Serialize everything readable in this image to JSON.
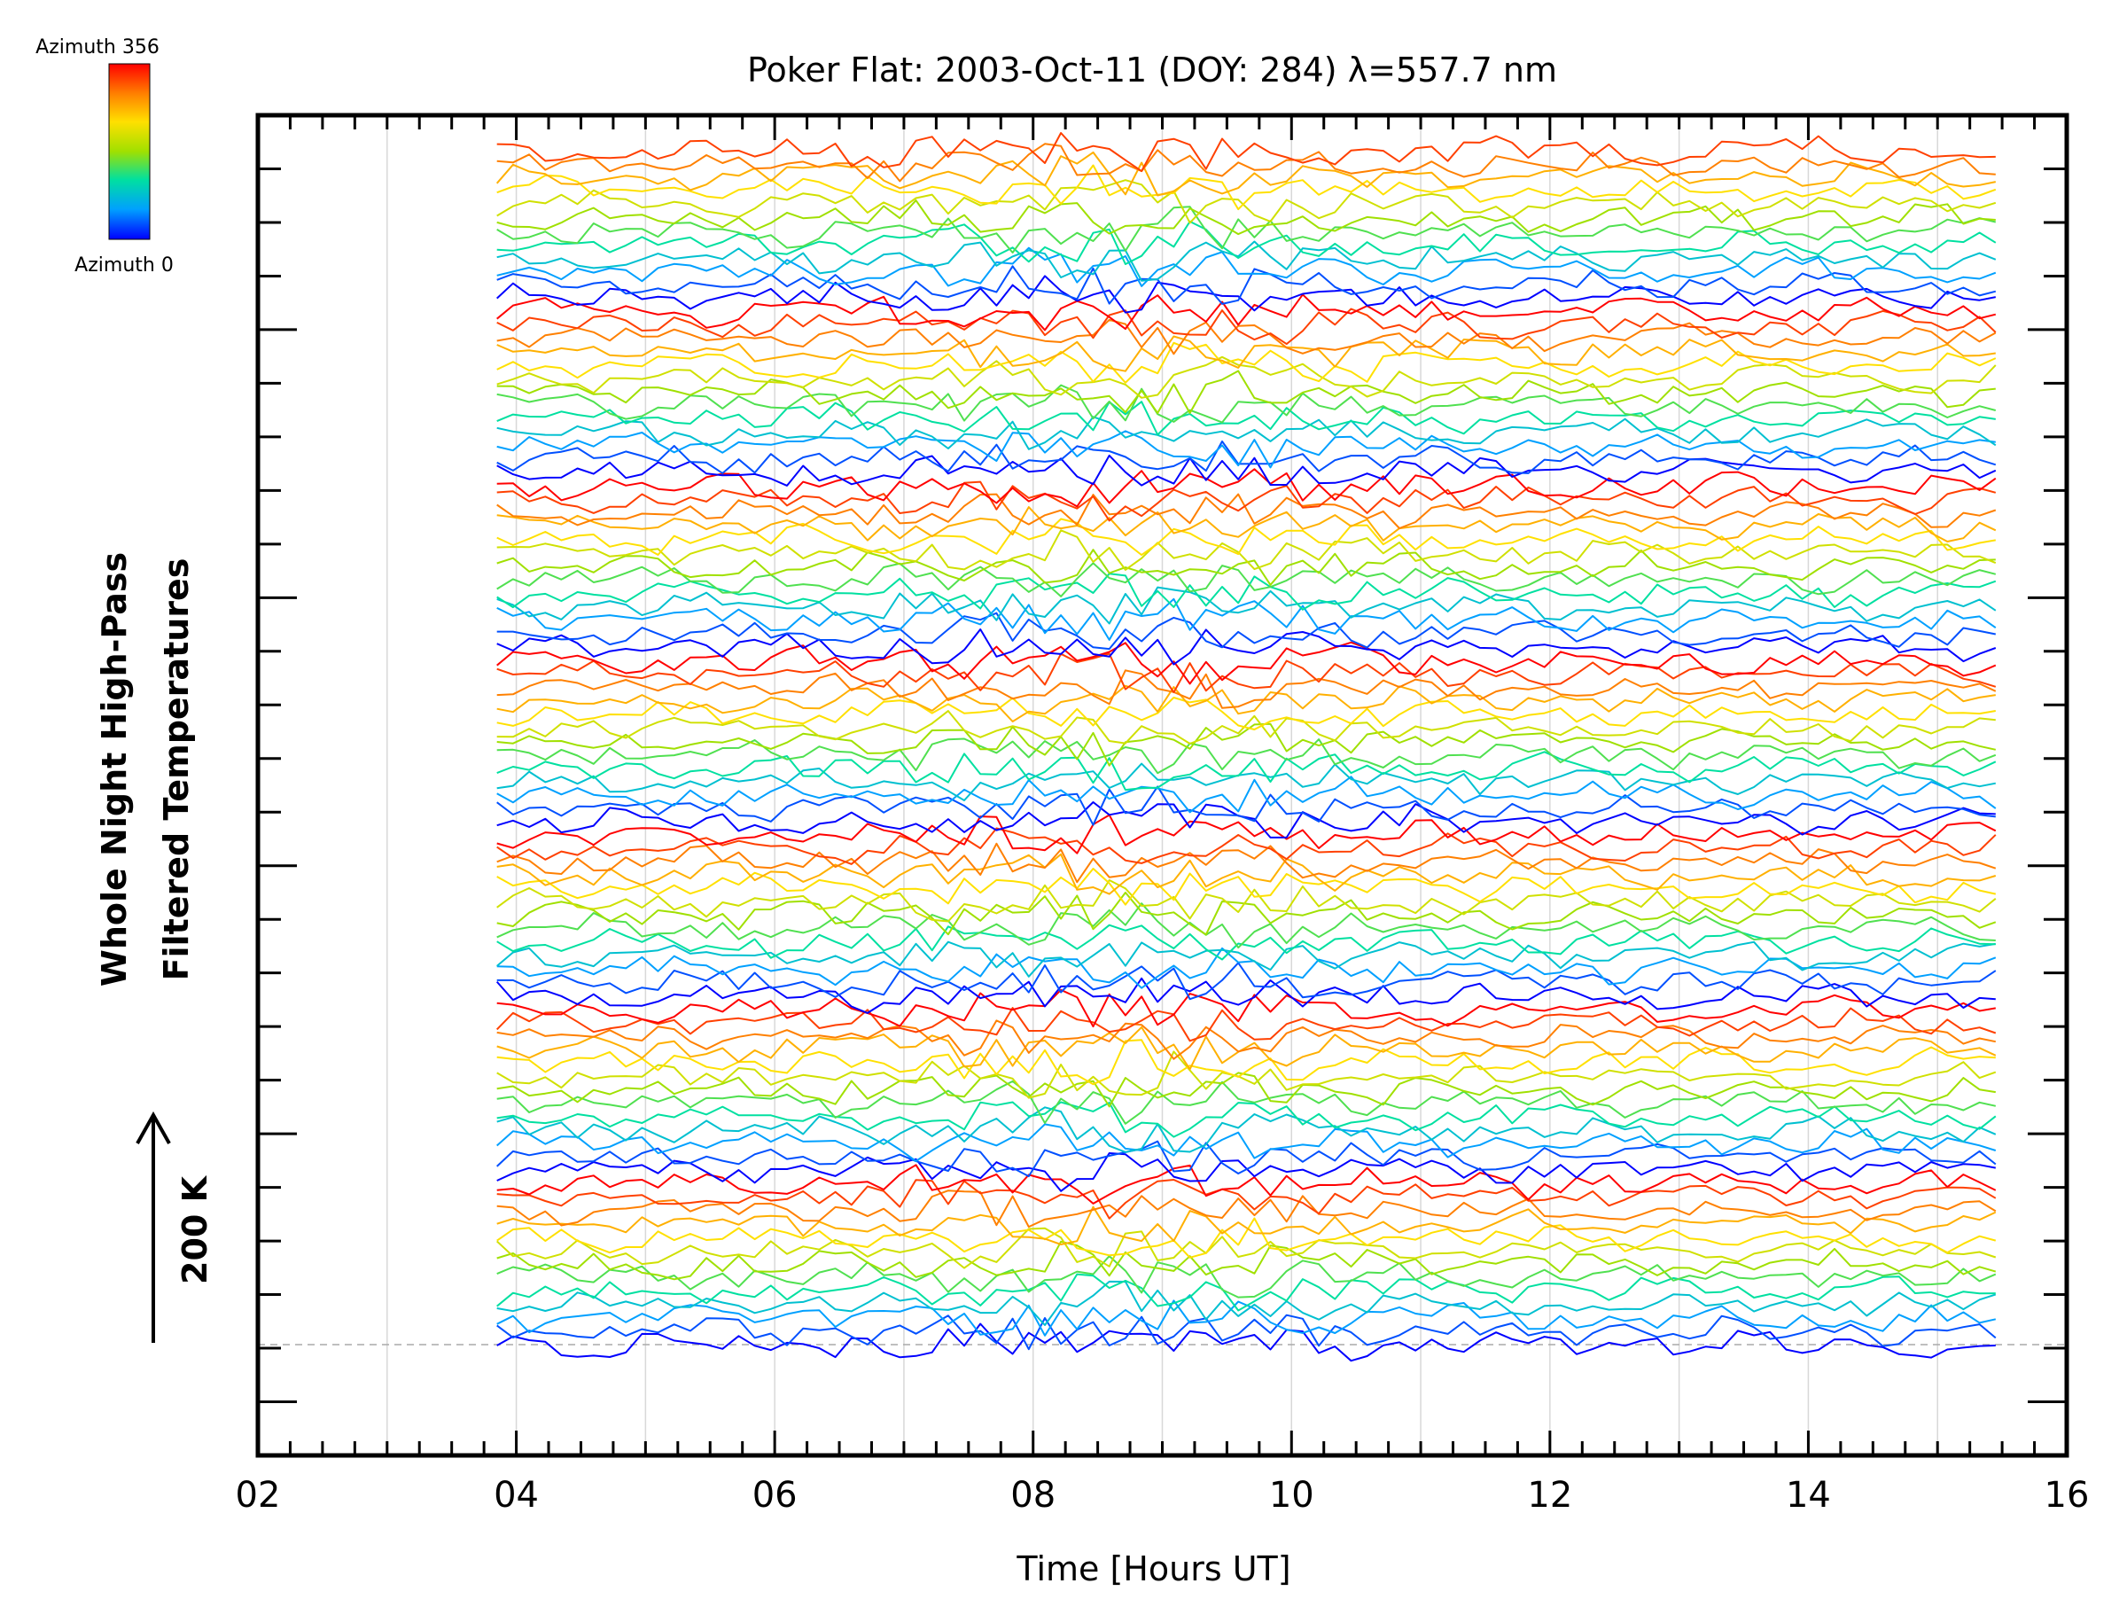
{
  "chart_data": {
    "type": "line",
    "title": "Poker Flat: 2003-Oct-11 (DOY: 284) λ=557.7 nm",
    "xlabel": "Time [Hours UT]",
    "ylabel_line1": "Whole Night High-Pass",
    "ylabel_line2": "Filtered Temperatures",
    "xlim": [
      2,
      16
    ],
    "x_ticks": [
      "02",
      "04",
      "06",
      "08",
      "10",
      "12",
      "14",
      "16"
    ],
    "x_tick_values": [
      2,
      4,
      6,
      8,
      10,
      12,
      14,
      16
    ],
    "grid": "vertical, every hour",
    "data_start_hour": 3.85,
    "data_end_hour": 15.45,
    "series_count": 90,
    "series_stack": "stacked traces, one per azimuth, offset vertically; azimuth cycles 0 to 356 repeatedly from bottom to top",
    "scale_bar_label": "200 K",
    "colorbar": {
      "top_label": "Azimuth 356",
      "bottom_label": "Azimuth 0",
      "colors": [
        "#0000ff",
        "#00a0ff",
        "#00e0a0",
        "#a0e000",
        "#ffe000",
        "#ff8000",
        "#ff0000"
      ]
    },
    "baseline": "dashed grey line at lowest trace"
  }
}
